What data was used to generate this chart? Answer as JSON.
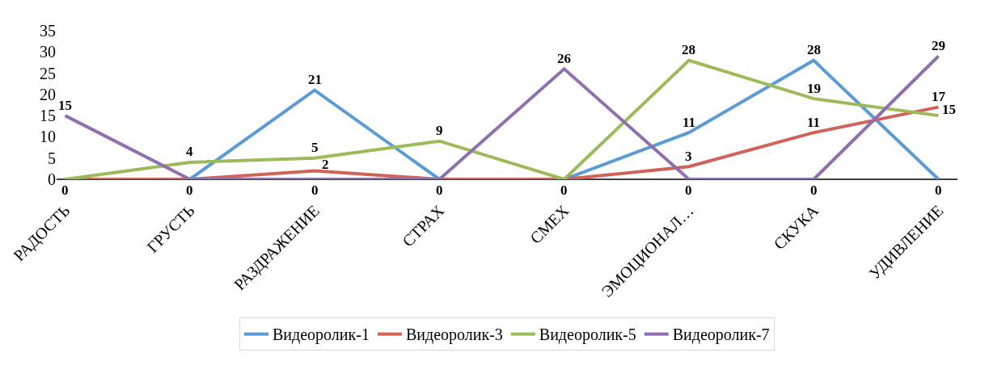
{
  "chart_data": {
    "type": "line",
    "categories": [
      "РАДОСТЬ",
      "ГРУСТЬ",
      "РАЗДРАЖЕНИЕ",
      "СТРАХ",
      "СМЕХ",
      "ЭМОЦИОНАЛ…",
      "СКУКА",
      "УДИВЛЕНИЕ"
    ],
    "series": [
      {
        "name": "Видеоролик-1",
        "color": "#5b9bd5",
        "values": [
          0,
          0,
          21,
          0,
          0,
          11,
          28,
          0
        ]
      },
      {
        "name": "Видеоролик-3",
        "color": "#d0625a",
        "values": [
          0,
          0,
          2,
          0,
          0,
          3,
          11,
          17
        ],
        "value_labels": [
          null,
          null,
          "2",
          null,
          null,
          "3",
          "11",
          "17"
        ]
      },
      {
        "name": "Видеоролик-5",
        "color": "#9bbb59",
        "values": [
          0,
          4,
          5,
          9,
          0,
          28,
          19,
          15
        ],
        "value_labels": [
          null,
          "4",
          "5",
          "9",
          null,
          "28",
          "19",
          "15"
        ]
      },
      {
        "name": "Видеоролик-7",
        "color": "#8f6fb0",
        "values": [
          15,
          0,
          0,
          0,
          26,
          0,
          0,
          29
        ],
        "value_labels": [
          "15",
          null,
          "0",
          null,
          "26",
          "0",
          "0",
          "29"
        ]
      }
    ],
    "ylim": [
      0,
      35
    ],
    "yticks": [
      0,
      5,
      10,
      15,
      20,
      25,
      30,
      35
    ],
    "legend": "bottom",
    "data_labels": true,
    "marker": "none",
    "line_style": "solid"
  }
}
